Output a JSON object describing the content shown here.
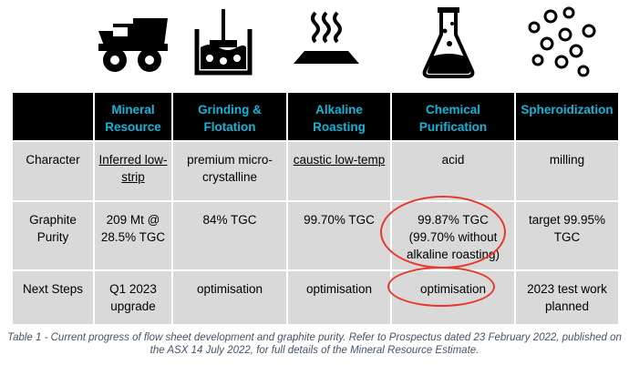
{
  "icons": [
    "mining-truck-icon",
    "grinding-tank-icon",
    "heated-roasting-icon",
    "flask-icon",
    "spheres-icon"
  ],
  "table": {
    "header": [
      "",
      "Mineral Resource",
      "Grinding & Flotation",
      "Alkaline Roasting",
      "Chemical Purification",
      "Spheroidization"
    ],
    "rows": [
      {
        "label": "Character",
        "cells": [
          "Inferred low-strip",
          "premium micro-crystalline",
          "caustic low-temp",
          "acid",
          "milling"
        ]
      },
      {
        "label": "Graphite Purity",
        "cells": [
          "209 Mt @ 28.5% TGC",
          "84% TGC",
          "99.70% TGC",
          "99.87% TGC (99.70% without alkaline roasting)",
          "target 99.95% TGC"
        ]
      },
      {
        "label": "Next Steps",
        "cells": [
          "Q1 2023 upgrade",
          "optimisation",
          "optimisation",
          "optimisation",
          "2023 test work planned"
        ]
      }
    ]
  },
  "caption": "Table 1 - Current progress of flow sheet development and graphite purity. Refer to Prospectus dated 23 February 2022, published on the ASX 14 July 2022, for full details of the Mineral Resource Estimate.",
  "colors": {
    "header_bg": "#000000",
    "header_text": "#14b3d8",
    "cell_bg": "#d9d9d9",
    "highlight": "#e8382d",
    "caption": "#44546a"
  }
}
